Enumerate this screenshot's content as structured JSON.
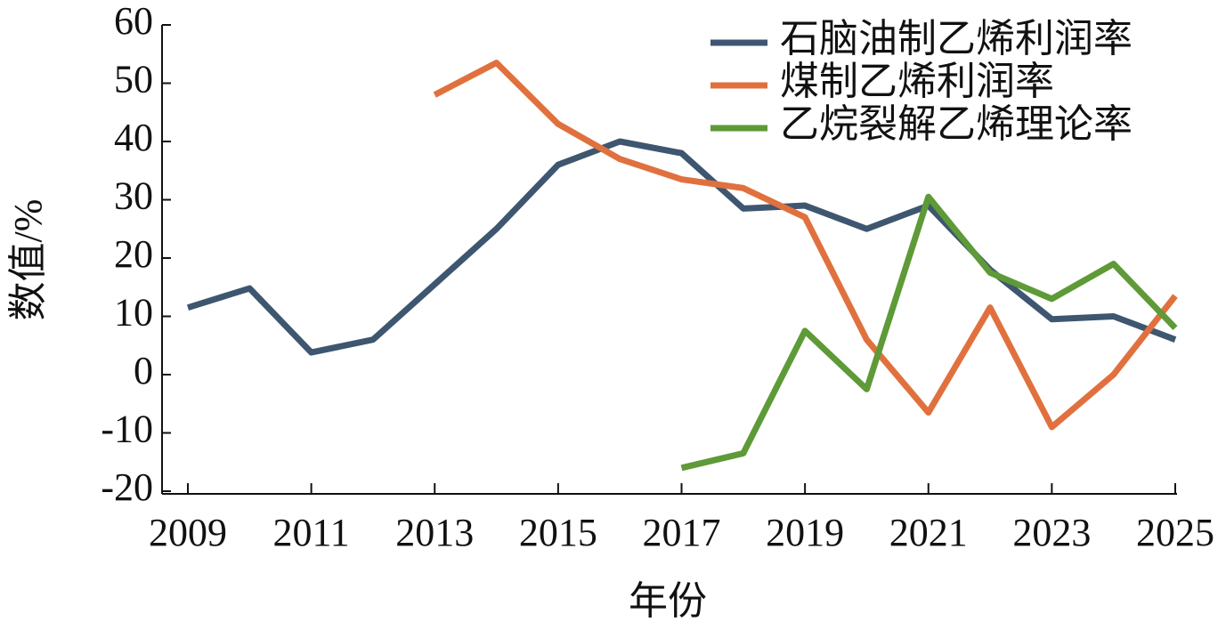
{
  "chart_data": {
    "type": "line",
    "x_label": "年份",
    "y_label": "数值/%",
    "x": [
      2009,
      2010,
      2011,
      2012,
      2013,
      2014,
      2015,
      2016,
      2017,
      2018,
      2019,
      2020,
      2021,
      2022,
      2023,
      2024,
      2025
    ],
    "series": [
      {
        "name": "石脑油制乙烯利润率",
        "color": "#3e5670",
        "values": [
          11.5,
          14.8,
          3.8,
          6,
          15.5,
          25,
          36,
          40,
          38,
          28.5,
          29,
          25,
          29,
          18,
          9.5,
          10,
          6
        ]
      },
      {
        "name": "煤制乙烯利润率",
        "color": "#e0713e",
        "values": [
          null,
          null,
          null,
          null,
          48,
          53.5,
          43,
          37,
          33.5,
          32,
          27,
          6,
          -6.5,
          11.5,
          -9,
          0,
          13.5
        ]
      },
      {
        "name": "乙烷裂解乙烯理论率",
        "color": "#5e9a37",
        "values": [
          null,
          null,
          null,
          null,
          null,
          null,
          null,
          null,
          -16,
          -13.5,
          7.5,
          -2.5,
          30.5,
          17.5,
          13,
          19,
          8
        ]
      }
    ],
    "xlim": [
      2009,
      2025
    ],
    "xticks": [
      2009,
      2011,
      2013,
      2015,
      2017,
      2019,
      2021,
      2023,
      2025
    ],
    "ylim": [
      -20,
      60
    ],
    "yticks": [
      -20,
      -10,
      0,
      10,
      20,
      30,
      40,
      50,
      60
    ],
    "legend": "top-right"
  }
}
